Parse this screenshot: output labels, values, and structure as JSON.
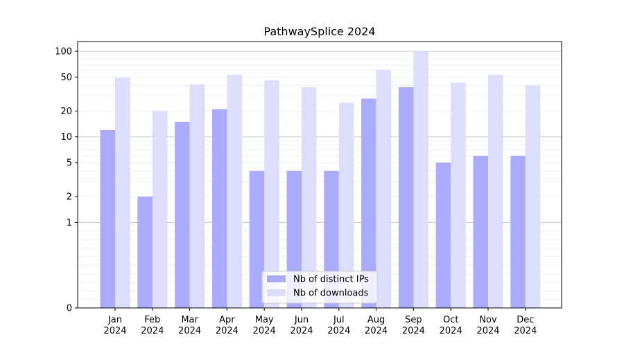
{
  "chart_data": {
    "type": "bar",
    "title": "PathwaySplice 2024",
    "xlabel": "",
    "ylabel": "",
    "y_scale": "symlog",
    "ylim": [
      0,
      130
    ],
    "y_ticks": [
      0,
      1,
      2,
      5,
      10,
      20,
      50,
      100
    ],
    "categories": [
      [
        "Jan",
        "2024"
      ],
      [
        "Feb",
        "2024"
      ],
      [
        "Mar",
        "2024"
      ],
      [
        "Apr",
        "2024"
      ],
      [
        "May",
        "2024"
      ],
      [
        "Jun",
        "2024"
      ],
      [
        "Jul",
        "2024"
      ],
      [
        "Aug",
        "2024"
      ],
      [
        "Sep",
        "2024"
      ],
      [
        "Oct",
        "2024"
      ],
      [
        "Nov",
        "2024"
      ],
      [
        "Dec",
        "2024"
      ]
    ],
    "series": [
      {
        "name": "Nb of distinct IPs",
        "color": "#aaaaff",
        "values": [
          12,
          2,
          15,
          21,
          4,
          4,
          4,
          28,
          38,
          5,
          6,
          6
        ]
      },
      {
        "name": "Nb of downloads",
        "color": "#ddddff",
        "values": [
          49,
          20,
          41,
          53,
          46,
          38,
          25,
          61,
          100,
          43,
          53,
          40
        ]
      }
    ],
    "grid": true,
    "legend": "lower-center"
  }
}
